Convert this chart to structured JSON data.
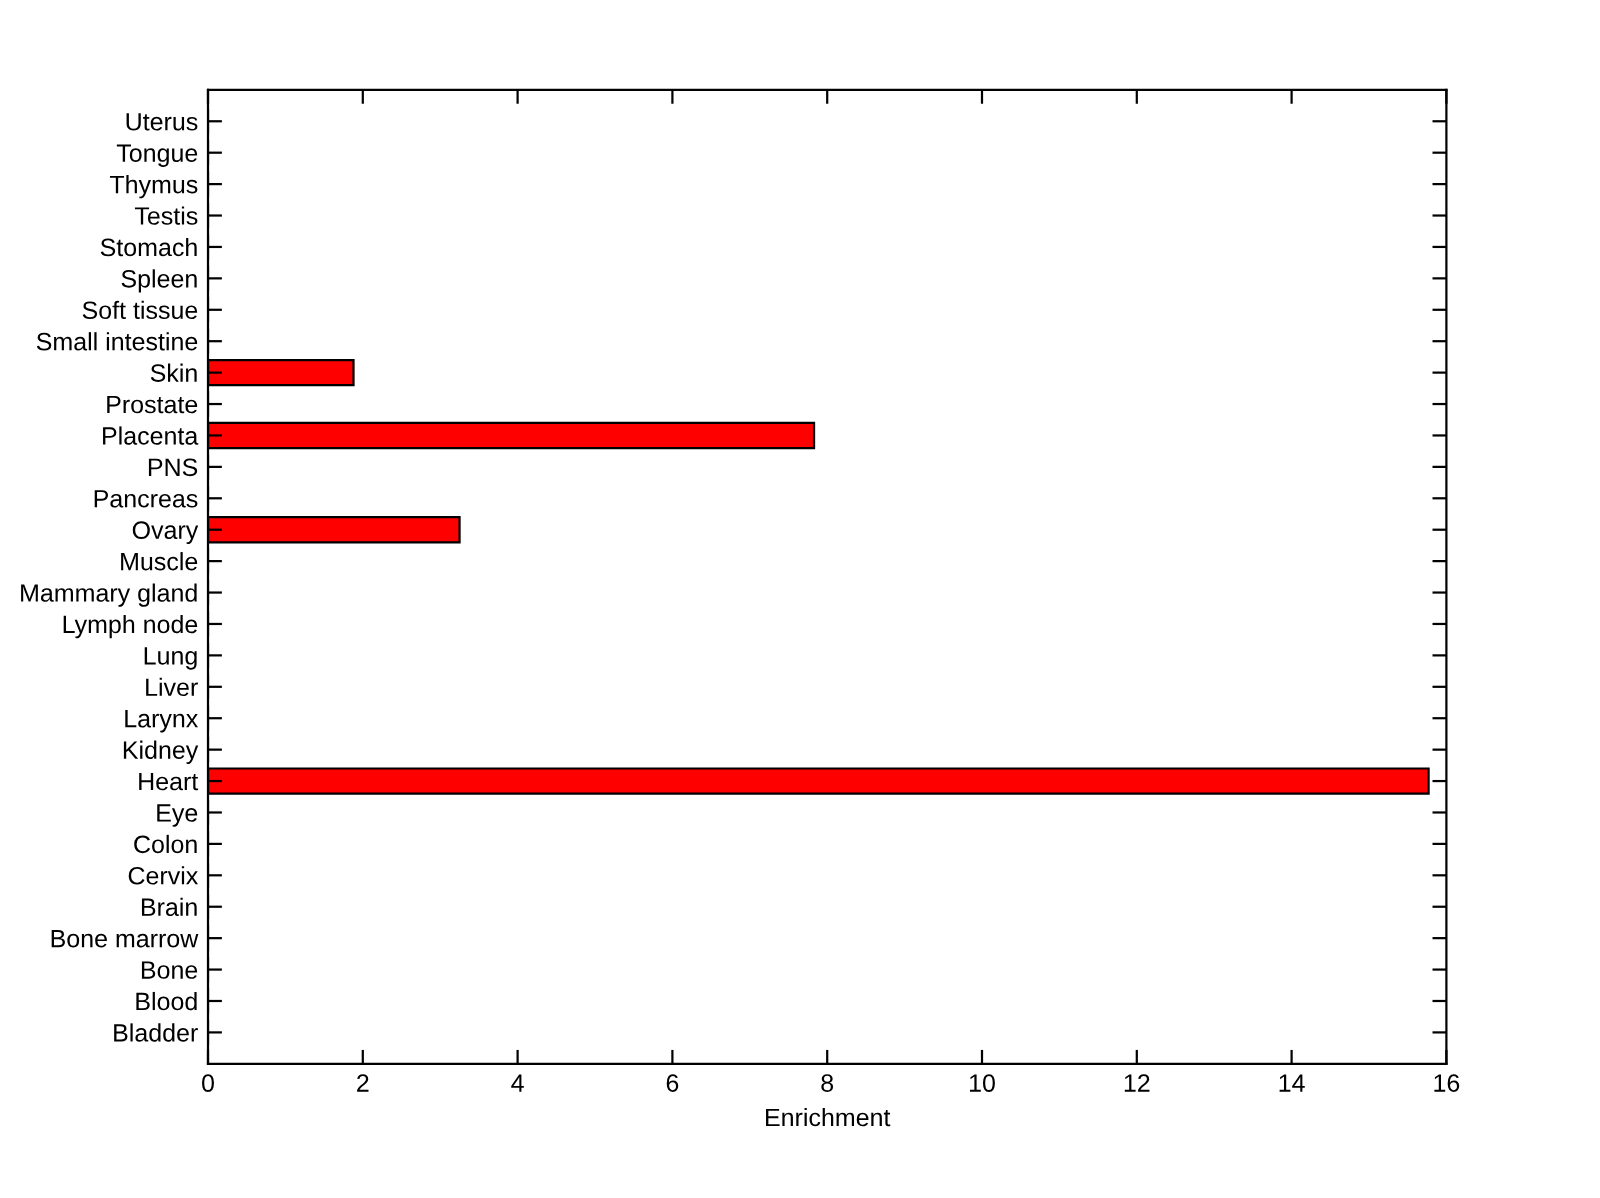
{
  "chart_data": {
    "type": "bar",
    "orientation": "horizontal",
    "xlabel": "Enrichment",
    "categories": [
      "Uterus",
      "Tongue",
      "Thymus",
      "Testis",
      "Stomach",
      "Spleen",
      "Soft tissue",
      "Small intestine",
      "Skin",
      "Prostate",
      "Placenta",
      "PNS",
      "Pancreas",
      "Ovary",
      "Muscle",
      "Mammary gland",
      "Lymph node",
      "Lung",
      "Liver",
      "Larynx",
      "Kidney",
      "Heart",
      "Eye",
      "Colon",
      "Cervix",
      "Brain",
      "Bone marrow",
      "Bone",
      "Blood",
      "Bladder"
    ],
    "values": [
      0,
      0,
      0,
      0,
      0,
      0,
      0,
      0,
      1.88,
      0,
      7.83,
      0,
      0,
      3.25,
      0,
      0,
      0,
      0,
      0,
      0,
      0,
      15.77,
      0,
      0,
      0,
      0,
      0,
      0,
      0,
      0
    ],
    "color": "#ff0000",
    "xlim": [
      0,
      16
    ],
    "xticks": [
      0,
      2,
      4,
      6,
      8,
      10,
      12,
      14,
      16
    ],
    "grid": false,
    "legend": false
  }
}
